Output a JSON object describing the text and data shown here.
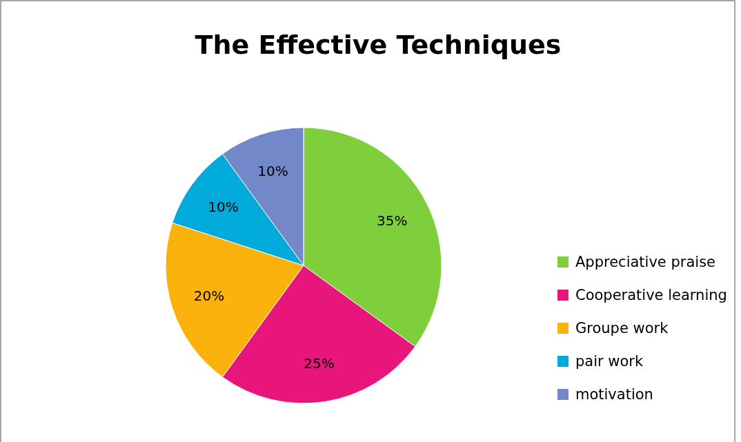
{
  "chart_data": {
    "type": "pie",
    "title": "The Effective Techniques",
    "categories": [
      "Appreciative praise",
      "Cooperative learning",
      "Groupe work",
      "pair work",
      "motivation"
    ],
    "values": [
      35,
      25,
      20,
      10,
      10
    ],
    "colors": [
      "#7fce3b",
      "#e8157a",
      "#fbb20c",
      "#00aadb",
      "#7288c8"
    ],
    "value_labels": [
      "35%",
      "25%",
      "20%",
      "10%",
      "10%"
    ],
    "legend": "right"
  }
}
